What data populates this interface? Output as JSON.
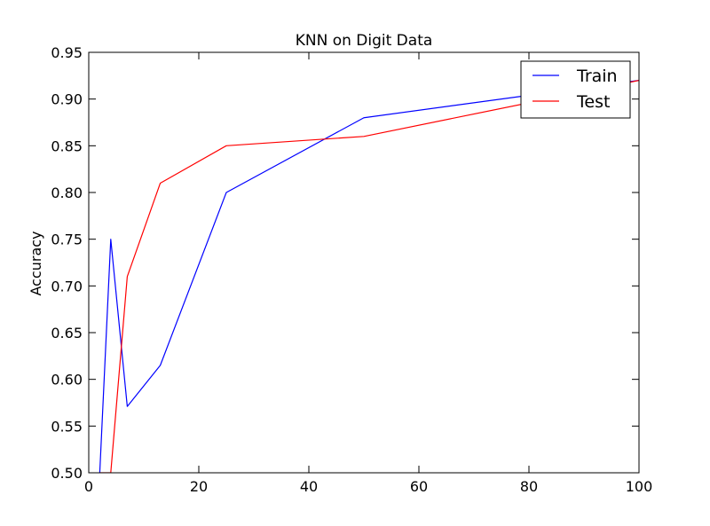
{
  "chart_data": {
    "type": "line",
    "title": "KNN on Digit Data",
    "xlabel": "",
    "ylabel": "Accuracy",
    "xlim": [
      0,
      100
    ],
    "ylim": [
      0.5,
      0.95
    ],
    "xticks": [
      0,
      20,
      40,
      60,
      80,
      100
    ],
    "xtick_labels": [
      "0",
      "20",
      "40",
      "60",
      "80",
      "100"
    ],
    "yticks": [
      0.5,
      0.55,
      0.6,
      0.65,
      0.7,
      0.75,
      0.8,
      0.85,
      0.9,
      0.95
    ],
    "ytick_labels": [
      "0.50",
      "0.55",
      "0.60",
      "0.65",
      "0.70",
      "0.75",
      "0.80",
      "0.85",
      "0.90",
      "0.95"
    ],
    "grid": false,
    "legend_position": "top-right",
    "series": [
      {
        "name": "Train",
        "color": "#0000ff",
        "x": [
          2,
          4,
          7,
          13,
          25,
          50,
          100
        ],
        "y": [
          0.5,
          0.75,
          0.571,
          0.615,
          0.8,
          0.88,
          0.92
        ]
      },
      {
        "name": "Test",
        "color": "#ff0000",
        "x": [
          2,
          4,
          7,
          13,
          25,
          50,
          100
        ],
        "y": [
          0.5,
          0.5,
          0.71,
          0.81,
          0.85,
          0.86,
          0.92
        ]
      }
    ]
  }
}
